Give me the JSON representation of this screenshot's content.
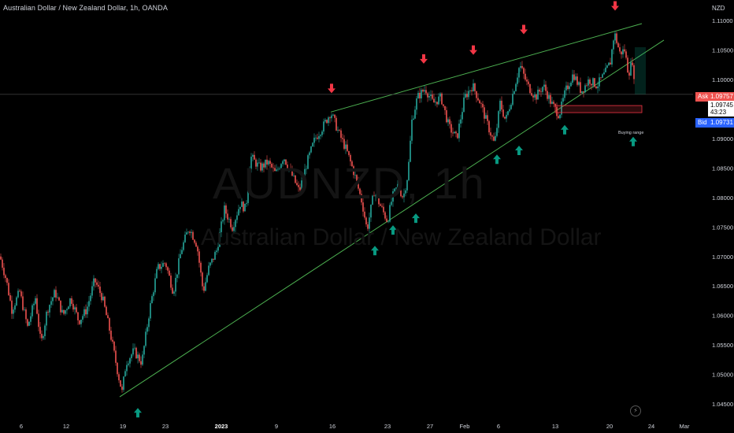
{
  "header": {
    "title": "Australian Dollar / New Zealand Dollar, 1h, OANDA"
  },
  "watermark": {
    "symbol": "AUDNZD, 1h",
    "name": "Australian Dollar / New Zealand Dollar"
  },
  "price_axis": {
    "unit": "NZD"
  },
  "quotes": {
    "ask_label": "Ask",
    "ask": "1.09757",
    "last": "1.09745",
    "countdown": "43:23",
    "bid_label": "Bid",
    "bid": "1.09731"
  },
  "annotations": {
    "buying_range": "Buying range"
  },
  "colors": {
    "up_candle": "#26a69a",
    "down_candle": "#ef5350",
    "trendline": "#4caf50",
    "up_arrow": "#089981",
    "down_arrow": "#f23645",
    "zone": "#f23645"
  },
  "chart_data": {
    "type": "candlestick",
    "title": "Australian Dollar / New Zealand Dollar, 1h, OANDA",
    "ylim": [
      1.0418,
      1.1135
    ],
    "y_ticks": [
      1.045,
      1.05,
      1.055,
      1.06,
      1.065,
      1.07,
      1.075,
      1.08,
      1.085,
      1.09,
      1.095,
      1.1,
      1.105,
      1.11
    ],
    "x_ticks": [
      "6",
      "12",
      "19",
      "23",
      "2023",
      "9",
      "16",
      "23",
      "27",
      "Feb",
      "6",
      "13",
      "20",
      "24",
      "Mar"
    ],
    "grid": false,
    "series_path": [
      [
        0,
        1.07
      ],
      [
        8,
        1.066
      ],
      [
        15,
        1.061
      ],
      [
        25,
        1.064
      ],
      [
        35,
        1.058
      ],
      [
        45,
        1.063
      ],
      [
        52,
        1.055
      ],
      [
        60,
        1.061
      ],
      [
        70,
        1.064
      ],
      [
        80,
        1.06
      ],
      [
        90,
        1.063
      ],
      [
        100,
        1.059
      ],
      [
        110,
        1.061
      ],
      [
        120,
        1.066
      ],
      [
        130,
        1.063
      ],
      [
        140,
        1.057
      ],
      [
        150,
        1.05
      ],
      [
        155,
        1.047
      ],
      [
        160,
        1.052
      ],
      [
        170,
        1.054
      ],
      [
        180,
        1.052
      ],
      [
        190,
        1.061
      ],
      [
        200,
        1.068
      ],
      [
        210,
        1.069
      ],
      [
        220,
        1.064
      ],
      [
        230,
        1.071
      ],
      [
        240,
        1.075
      ],
      [
        250,
        1.072
      ],
      [
        258,
        1.064
      ],
      [
        265,
        1.068
      ],
      [
        275,
        1.071
      ],
      [
        285,
        1.078
      ],
      [
        295,
        1.075
      ],
      [
        305,
        1.079
      ],
      [
        312,
        1.078
      ],
      [
        318,
        1.087
      ],
      [
        330,
        1.085
      ],
      [
        340,
        1.086
      ],
      [
        350,
        1.084
      ],
      [
        360,
        1.087
      ],
      [
        370,
        1.084
      ],
      [
        380,
        1.081
      ],
      [
        390,
        1.086
      ],
      [
        400,
        1.09
      ],
      [
        410,
        1.092
      ],
      [
        420,
        1.0945
      ],
      [
        430,
        1.091
      ],
      [
        440,
        1.088
      ],
      [
        450,
        1.084
      ],
      [
        460,
        1.079
      ],
      [
        466,
        1.0745
      ],
      [
        475,
        1.081
      ],
      [
        485,
        1.078
      ],
      [
        492,
        1.076
      ],
      [
        498,
        1.08
      ],
      [
        505,
        1.082
      ],
      [
        512,
        1.08
      ],
      [
        518,
        1.084
      ],
      [
        523,
        1.093
      ],
      [
        530,
        1.097
      ],
      [
        540,
        1.0985
      ],
      [
        550,
        1.096
      ],
      [
        560,
        1.097
      ],
      [
        570,
        1.092
      ],
      [
        580,
        1.09
      ],
      [
        590,
        1.097
      ],
      [
        600,
        1.099
      ],
      [
        610,
        1.096
      ],
      [
        620,
        1.092
      ],
      [
        628,
        1.089
      ],
      [
        635,
        1.096
      ],
      [
        642,
        1.093
      ],
      [
        650,
        1.097
      ],
      [
        660,
        1.1025
      ],
      [
        670,
        1.099
      ],
      [
        680,
        1.097
      ],
      [
        690,
        1.099
      ],
      [
        700,
        1.096
      ],
      [
        710,
        1.094
      ],
      [
        718,
        1.098
      ],
      [
        728,
        1.101
      ],
      [
        738,
        1.098
      ],
      [
        748,
        1.1
      ],
      [
        758,
        1.099
      ],
      [
        768,
        1.101
      ],
      [
        775,
        1.103
      ],
      [
        780,
        1.108
      ],
      [
        787,
        1.1045
      ],
      [
        793,
        1.105
      ],
      [
        798,
        1.101
      ],
      [
        803,
        1.1032
      ],
      [
        806,
        1.0975
      ]
    ],
    "trendlines": [
      {
        "role": "lower-support",
        "from": [
          152,
          1.0462
        ],
        "to": [
          843,
          1.1067
        ]
      },
      {
        "role": "upper-resistance",
        "from": [
          420,
          1.0945
        ],
        "to": [
          815,
          1.1095
        ]
      },
      {
        "role": "current-price",
        "from": [
          0,
          1.0975
        ],
        "to": [
          880,
          1.0975
        ]
      }
    ],
    "zone": {
      "label": "Buying range",
      "x": [
        705,
        815
      ],
      "price_top": 1.0956,
      "price_bottom": 1.0944
    },
    "up_arrows": [
      [
        175,
        1.0435
      ],
      [
        476,
        1.071
      ],
      [
        499,
        1.0745
      ],
      [
        528,
        1.0765
      ],
      [
        631,
        1.0865
      ],
      [
        659,
        1.088
      ],
      [
        717,
        1.0915
      ],
      [
        804,
        1.0895
      ]
    ],
    "down_arrows": [
      [
        421,
        1.0985
      ],
      [
        538,
        1.1035
      ],
      [
        601,
        1.105
      ],
      [
        665,
        1.1085
      ],
      [
        781,
        1.1125
      ]
    ]
  }
}
